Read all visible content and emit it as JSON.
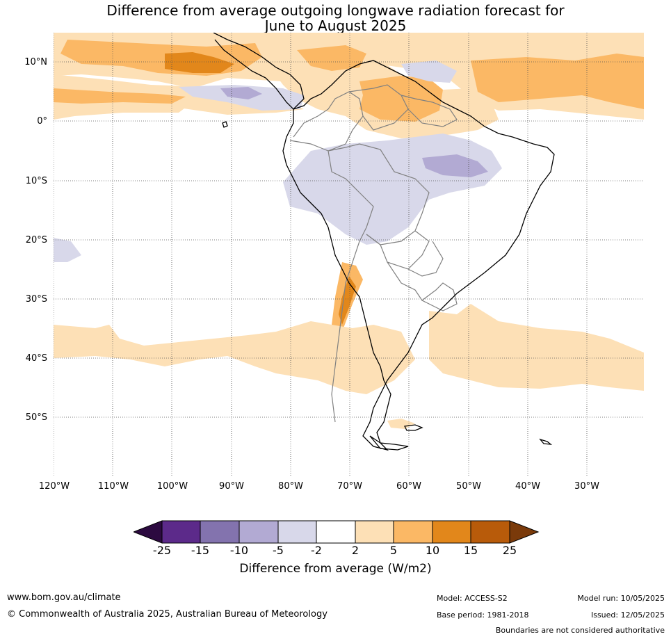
{
  "title": {
    "line1": "Difference from average outgoing longwave radiation forecast for",
    "line2": "June to August 2025"
  },
  "map": {
    "lat_labels": [
      "10°N",
      "0°",
      "10°S",
      "20°S",
      "30°S",
      "40°S",
      "50°S"
    ],
    "lon_labels": [
      "120°W",
      "110°W",
      "100°W",
      "90°W",
      "80°W",
      "70°W",
      "60°W",
      "50°W",
      "40°W",
      "30°W"
    ],
    "colors": {
      "neg25": "#2c0a40",
      "neg15": "#5c2a8a",
      "neg10": "#8373ae",
      "neg5": "#b2aad3",
      "neg2": "#d8d8ea",
      "neutral": "#ffffff",
      "pos2": "#fde0b6",
      "pos5": "#fbb865",
      "pos10": "#e2871b",
      "pos15": "#b85b0a",
      "pos25": "#7a3a0a",
      "coast": "#000000",
      "border": "#808080",
      "grid": "#555555"
    }
  },
  "colorbar": {
    "ticks": [
      "-25",
      "-15",
      "-10",
      "-5",
      "-2",
      "2",
      "5",
      "10",
      "15",
      "25"
    ],
    "label": "Difference from average (W/m2)"
  },
  "footer": {
    "url": "www.bom.gov.au/climate",
    "copyright": "© Commonwealth of Australia 2025, Australian Bureau of Meteorology",
    "model": "Model: ACCESS-S2",
    "base_period": "Base period: 1981-2018",
    "model_run": "Model run: 10/05/2025",
    "issued": "Issued: 12/05/2025",
    "disclaimer": "Boundaries are not considered authoritative"
  }
}
